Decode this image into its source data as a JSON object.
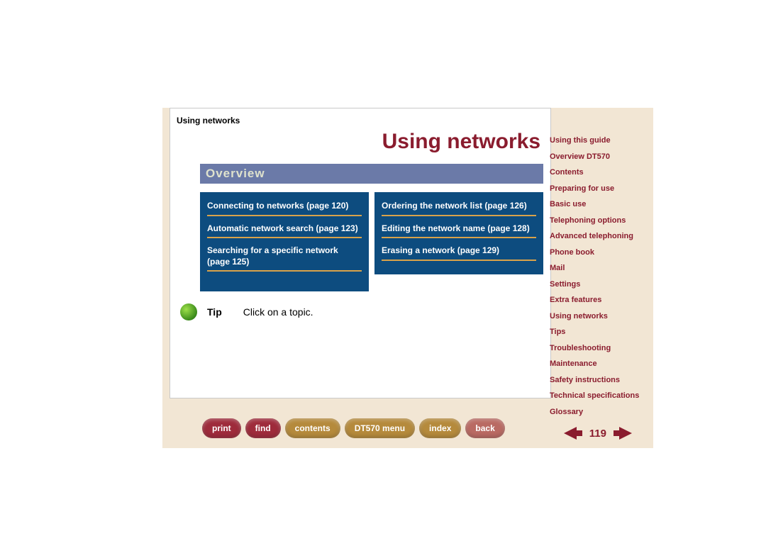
{
  "section_label": "Using networks",
  "page_title": "Using networks",
  "overview_heading": "Overview",
  "overview_bar_bg": "#6b7aa8",
  "overview_bar_fg": "#dfe2cd",
  "topic_box_bg": "#0d4c7f",
  "topic_divider_color": "#d9a24a",
  "topics_left": [
    "Connecting to networks (page 120)",
    "Automatic network search (page 123)",
    "Searching for a specific network (page 125)"
  ],
  "topics_right": [
    "Ordering the network list (page 126)",
    "Editing the network name (page 128)",
    "Erasing a network (page 129)"
  ],
  "tip": {
    "label": "Tip",
    "text": "Click on a topic."
  },
  "nav": {
    "buttons": [
      {
        "label": "print",
        "bg": "#9e2b3b"
      },
      {
        "label": "find",
        "bg": "#9e2b3b"
      },
      {
        "label": "contents",
        "bg": "#b58a3c"
      },
      {
        "label": "DT570 menu",
        "bg": "#b58a3c"
      },
      {
        "label": "index",
        "bg": "#b58a3c"
      },
      {
        "label": "back",
        "bg": "#b96a63"
      }
    ]
  },
  "page_number": "119",
  "arrow_color": "#8a1c2e",
  "toc": [
    "Using this guide",
    "Overview DT570",
    "Contents",
    "Preparing for use",
    "Basic use",
    "Telephoning options",
    "Advanced telephoning",
    "Phone book",
    "Mail",
    "Settings",
    "Extra features",
    "Using networks",
    "Tips",
    "Troubleshooting",
    "Maintenance",
    "Safety instructions",
    "Technical specifications",
    "Glossary"
  ],
  "toc_color": "#8a1c2e",
  "panel_bg": "#f2e6d4"
}
